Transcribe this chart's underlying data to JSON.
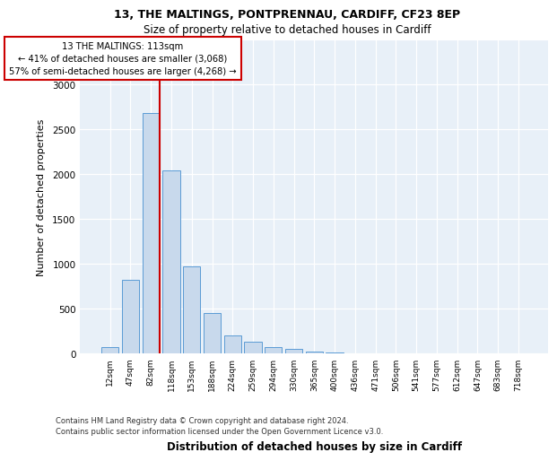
{
  "title1": "13, THE MALTINGS, PONTPRENNAU, CARDIFF, CF23 8EP",
  "title2": "Size of property relative to detached houses in Cardiff",
  "xlabel": "Distribution of detached houses by size in Cardiff",
  "ylabel": "Number of detached properties",
  "bar_labels": [
    "12sqm",
    "47sqm",
    "82sqm",
    "118sqm",
    "153sqm",
    "188sqm",
    "224sqm",
    "259sqm",
    "294sqm",
    "330sqm",
    "365sqm",
    "400sqm",
    "436sqm",
    "471sqm",
    "506sqm",
    "541sqm",
    "577sqm",
    "612sqm",
    "647sqm",
    "683sqm",
    "718sqm"
  ],
  "bar_values": [
    75,
    820,
    2680,
    2040,
    970,
    450,
    200,
    130,
    70,
    55,
    25,
    10,
    5,
    5,
    2,
    2,
    1,
    1,
    0,
    0,
    0
  ],
  "bar_color": "#c8d9ec",
  "bar_edge_color": "#5b9bd5",
  "vline_color": "#cc0000",
  "annotation_line1": "13 THE MALTINGS: 113sqm",
  "annotation_line2": "← 41% of detached houses are smaller (3,068)",
  "annotation_line3": "57% of semi-detached houses are larger (4,268) →",
  "annotation_box_color": "#ffffff",
  "annotation_box_edge": "#cc0000",
  "ylim": [
    0,
    3500
  ],
  "yticks": [
    0,
    500,
    1000,
    1500,
    2000,
    2500,
    3000,
    3500
  ],
  "footer1": "Contains HM Land Registry data © Crown copyright and database right 2024.",
  "footer2": "Contains public sector information licensed under the Open Government Licence v3.0.",
  "plot_bg_color": "#e8f0f8"
}
